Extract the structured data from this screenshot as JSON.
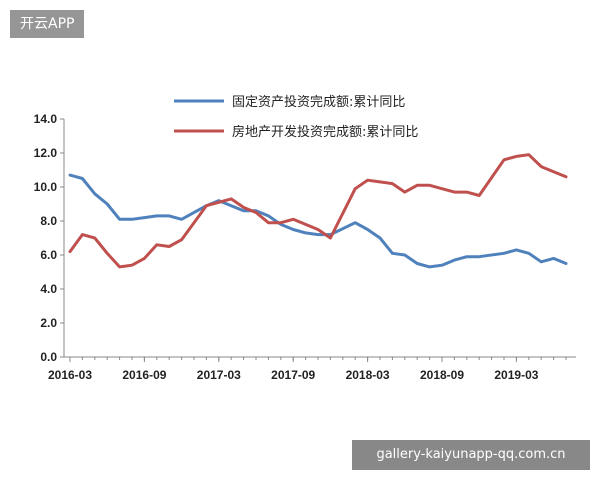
{
  "overlay": {
    "badge_text": "开云APP",
    "watermark_text": "gallery-kaiyunapp-qq.com.cn"
  },
  "chart_data": {
    "type": "line",
    "ylim": [
      0,
      14
    ],
    "yticks": [
      "14.0",
      "12.0",
      "10.0",
      "8.0",
      "6.0",
      "4.0",
      "2.0",
      "0.0"
    ],
    "xticks": [
      "2016-03",
      "2016-09",
      "2017-03",
      "2017-09",
      "2018-03",
      "2018-09",
      "2019-03"
    ],
    "x": [
      "2016-03",
      "2016-04",
      "2016-05",
      "2016-06",
      "2016-07",
      "2016-08",
      "2016-09",
      "2016-10",
      "2016-11",
      "2016-12",
      "2017-02",
      "2017-03",
      "2017-04",
      "2017-05",
      "2017-06",
      "2017-07",
      "2017-08",
      "2017-09",
      "2017-10",
      "2017-11",
      "2017-12",
      "2018-02",
      "2018-03",
      "2018-04",
      "2018-05",
      "2018-06",
      "2018-07",
      "2018-08",
      "2018-09",
      "2018-10",
      "2018-11",
      "2018-12",
      "2019-02",
      "2019-03",
      "2019-04",
      "2019-05",
      "2019-06",
      "2019-07"
    ],
    "series": [
      {
        "name": "固定资产投资完成额:累计同比",
        "color": "#4f81bd",
        "values": [
          10.7,
          10.5,
          9.6,
          9.0,
          8.1,
          8.1,
          8.2,
          8.3,
          8.3,
          8.1,
          8.9,
          9.2,
          8.9,
          8.6,
          8.6,
          8.3,
          7.8,
          7.5,
          7.3,
          7.2,
          7.2,
          7.9,
          7.5,
          7.0,
          6.1,
          6.0,
          5.5,
          5.3,
          5.4,
          5.7,
          5.9,
          5.9,
          6.1,
          6.3,
          6.1,
          5.6,
          5.8,
          5.5
        ]
      },
      {
        "name": "房地产开发投资完成额:累计同比",
        "color": "#c0504d",
        "values": [
          6.2,
          7.2,
          7.0,
          6.1,
          5.3,
          5.4,
          5.8,
          6.6,
          6.5,
          6.9,
          8.9,
          9.1,
          9.3,
          8.8,
          8.5,
          7.9,
          7.9,
          8.1,
          7.8,
          7.5,
          7.0,
          9.9,
          10.4,
          10.3,
          10.2,
          9.7,
          10.1,
          10.1,
          9.9,
          9.7,
          9.7,
          9.5,
          11.6,
          11.8,
          11.9,
          11.2,
          10.9,
          10.6
        ]
      }
    ]
  }
}
